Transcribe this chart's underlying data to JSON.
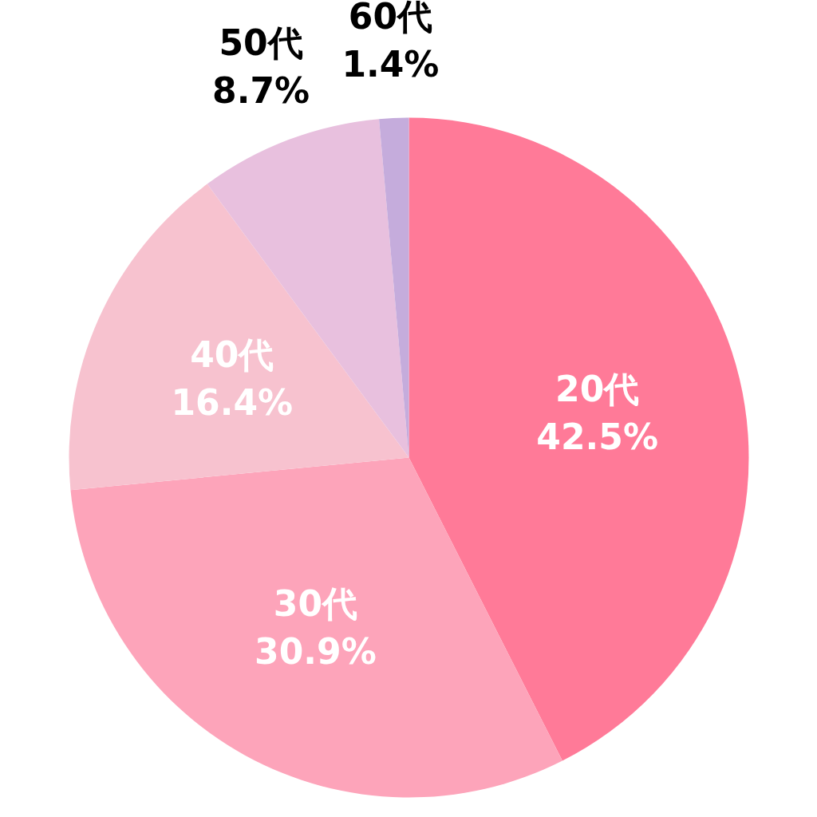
{
  "chart_data": {
    "type": "pie",
    "categories": [
      "20代",
      "30代",
      "40代",
      "50代",
      "60代"
    ],
    "values": [
      42.5,
      30.9,
      16.4,
      8.7,
      1.4
    ],
    "value_labels": [
      "42.5%",
      "30.9%",
      "16.4%",
      "8.7%",
      "1.4%"
    ],
    "colors": [
      "#ff7a98",
      "#fda4ba",
      "#f7c2cf",
      "#e8c0de",
      "#c5acdc"
    ]
  }
}
